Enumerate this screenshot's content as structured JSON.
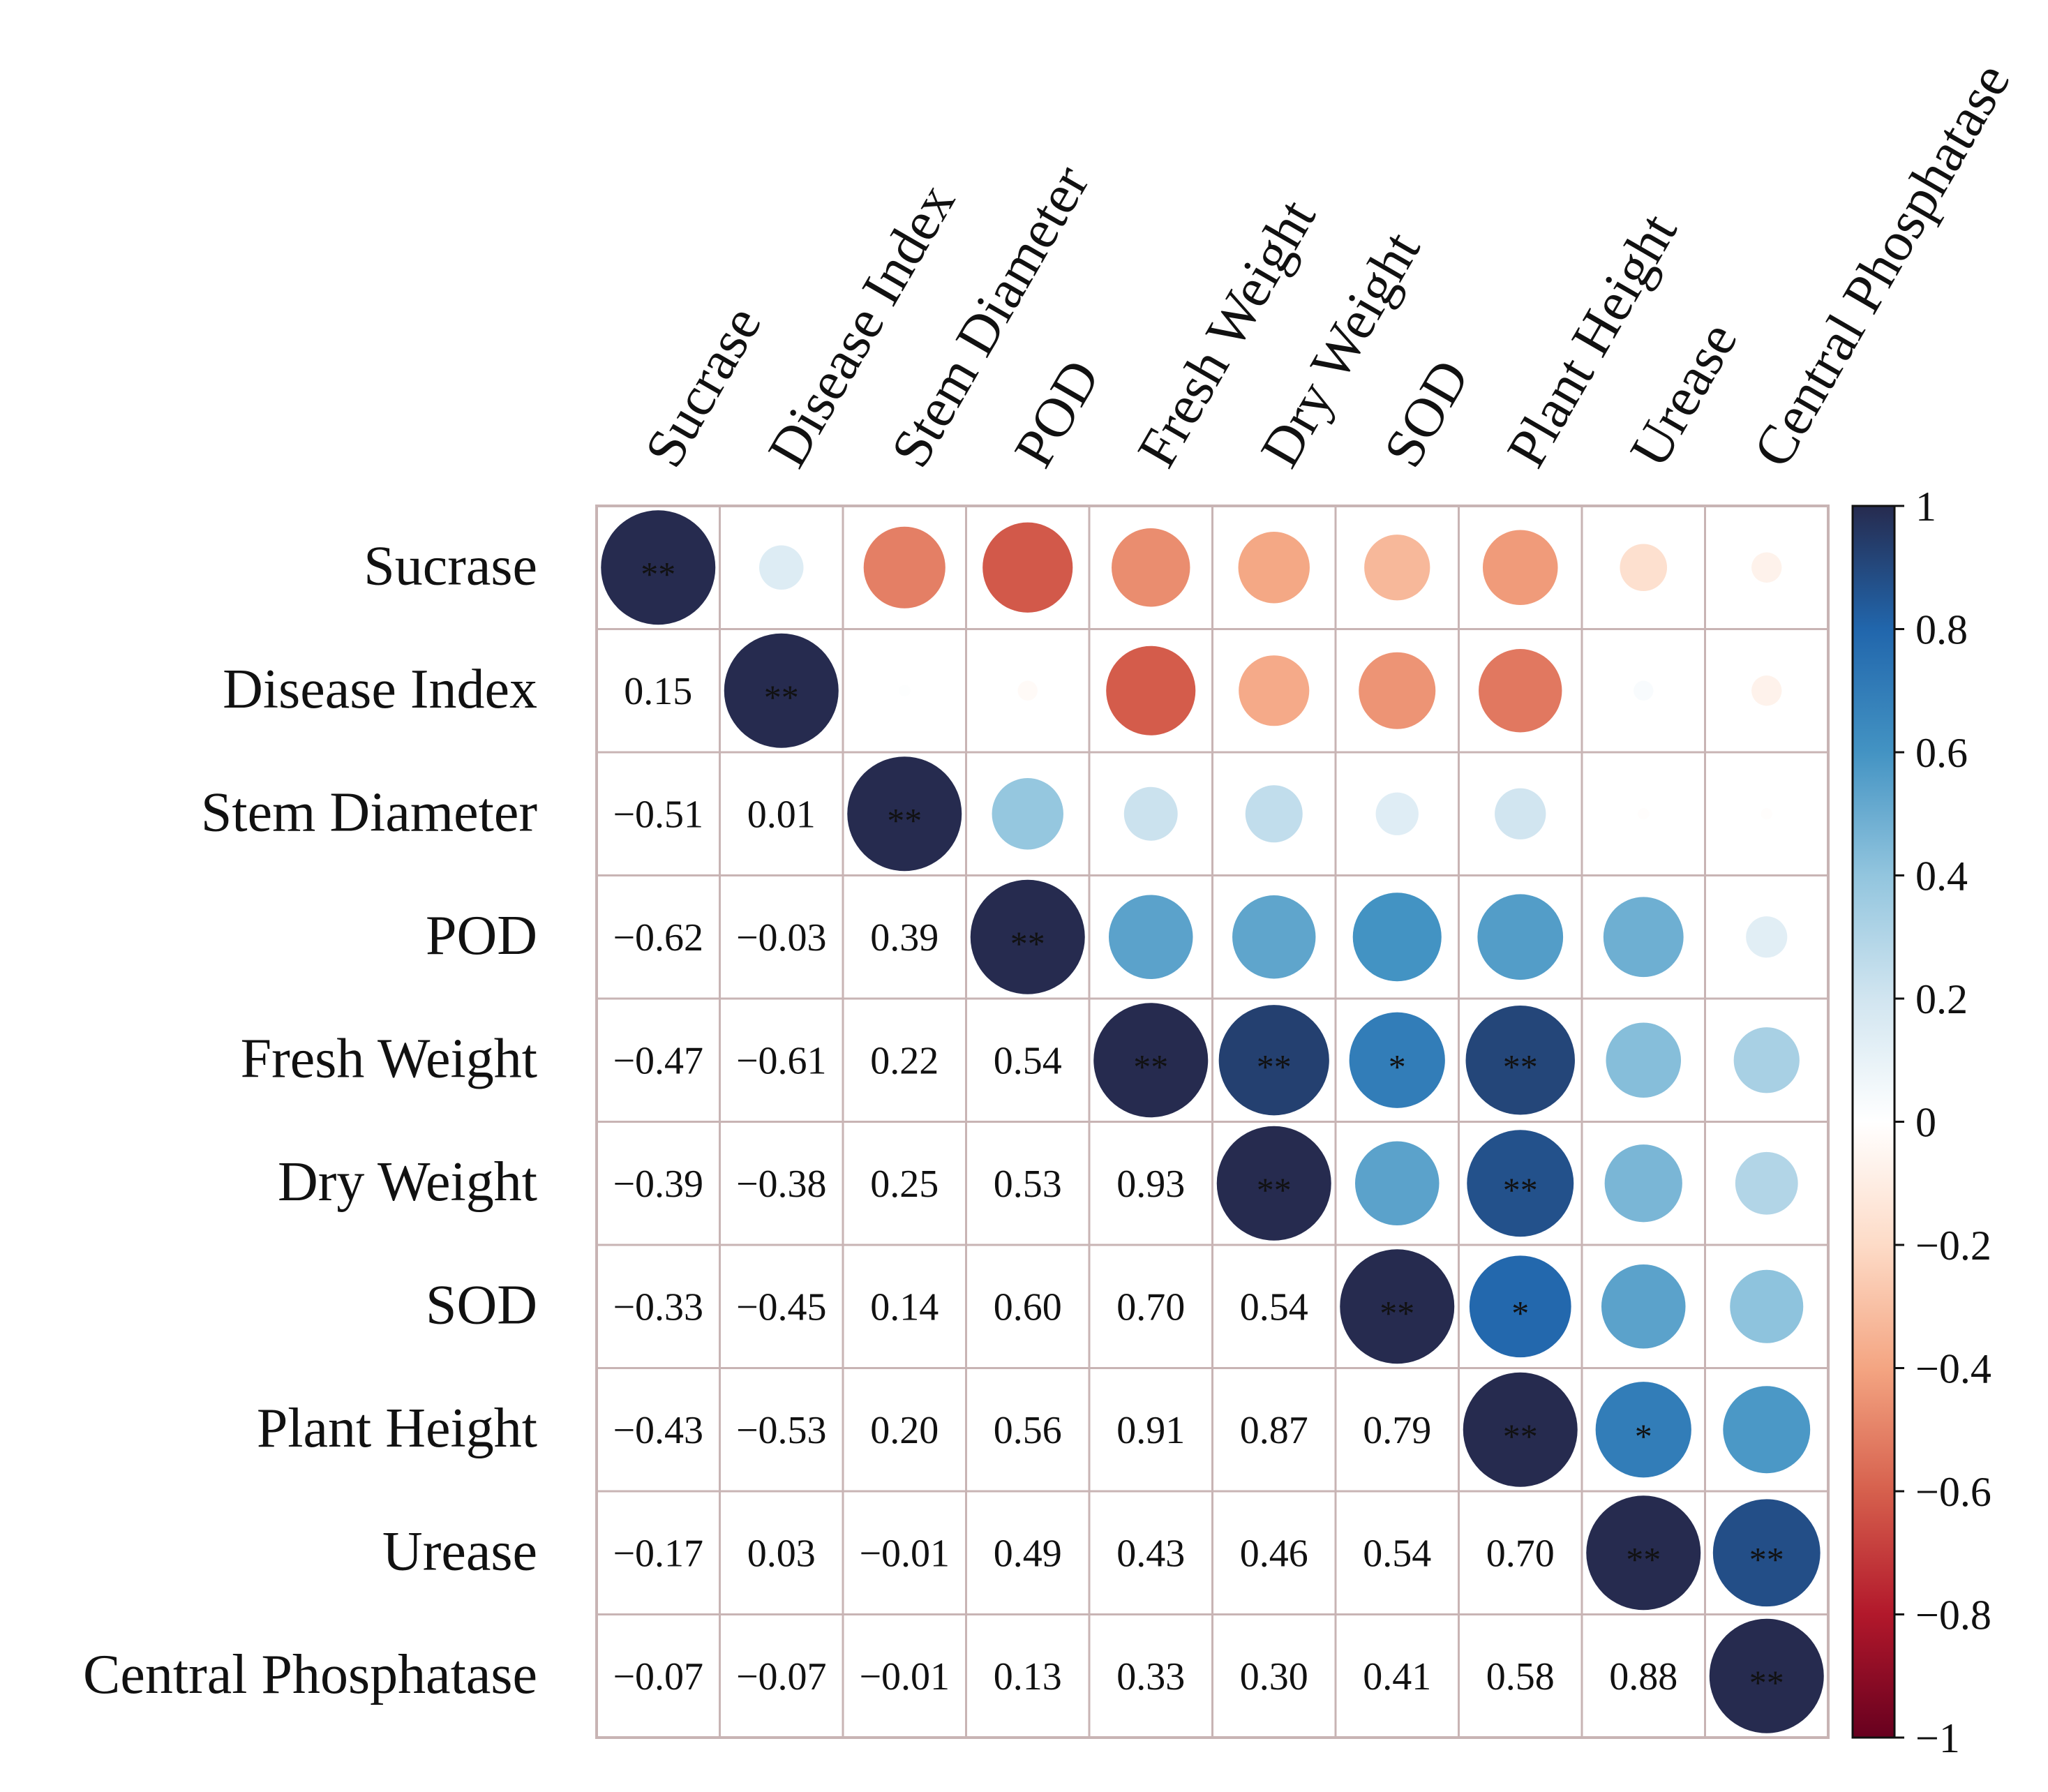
{
  "chart_data": {
    "type": "heatmap",
    "variables": [
      "Sucrase",
      "Disease Index",
      "Stem Diameter",
      "POD",
      "Fresh Weight",
      "Dry Weight",
      "SOD",
      "Plant Height",
      "Urease",
      "Central Phosphatase"
    ],
    "matrix": [
      [
        1,
        0.15,
        -0.51,
        -0.62,
        -0.47,
        -0.39,
        -0.33,
        -0.43,
        -0.17,
        -0.07
      ],
      [
        0.15,
        1,
        0.01,
        -0.03,
        -0.61,
        -0.38,
        -0.45,
        -0.53,
        0.03,
        -0.07
      ],
      [
        -0.51,
        0.01,
        1,
        0.39,
        0.22,
        0.25,
        0.14,
        0.2,
        -0.01,
        -0.01
      ],
      [
        -0.62,
        -0.03,
        0.39,
        1,
        0.54,
        0.53,
        0.6,
        0.56,
        0.49,
        0.13
      ],
      [
        -0.47,
        -0.61,
        0.22,
        0.54,
        1,
        0.93,
        0.7,
        0.91,
        0.43,
        0.33
      ],
      [
        -0.39,
        -0.38,
        0.25,
        0.53,
        0.93,
        1,
        0.54,
        0.87,
        0.46,
        0.3
      ],
      [
        -0.33,
        -0.45,
        0.14,
        0.6,
        0.7,
        0.54,
        1,
        0.79,
        0.54,
        0.41
      ],
      [
        -0.43,
        -0.53,
        0.2,
        0.56,
        0.91,
        0.87,
        0.79,
        1,
        0.7,
        0.58
      ],
      [
        -0.17,
        0.03,
        -0.01,
        0.49,
        0.43,
        0.46,
        0.54,
        0.7,
        1,
        0.88
      ],
      [
        -0.07,
        -0.07,
        -0.01,
        0.13,
        0.33,
        0.3,
        0.41,
        0.58,
        0.88,
        1
      ]
    ],
    "display": {
      "lower_triangle": "numbers",
      "upper_triangle_and_diagonal": "circles"
    },
    "significance_upper": [
      {
        "row": 0,
        "col": 0,
        "mark": "**"
      },
      {
        "row": 1,
        "col": 1,
        "mark": "**"
      },
      {
        "row": 2,
        "col": 2,
        "mark": "**"
      },
      {
        "row": 3,
        "col": 3,
        "mark": "**"
      },
      {
        "row": 4,
        "col": 4,
        "mark": "**"
      },
      {
        "row": 4,
        "col": 5,
        "mark": "**"
      },
      {
        "row": 4,
        "col": 6,
        "mark": "*"
      },
      {
        "row": 4,
        "col": 7,
        "mark": "**"
      },
      {
        "row": 5,
        "col": 5,
        "mark": "**"
      },
      {
        "row": 5,
        "col": 7,
        "mark": "**"
      },
      {
        "row": 6,
        "col": 6,
        "mark": "**"
      },
      {
        "row": 6,
        "col": 7,
        "mark": "*"
      },
      {
        "row": 7,
        "col": 7,
        "mark": "**"
      },
      {
        "row": 7,
        "col": 8,
        "mark": "*"
      },
      {
        "row": 8,
        "col": 8,
        "mark": "**"
      },
      {
        "row": 8,
        "col": 9,
        "mark": "**"
      },
      {
        "row": 9,
        "col": 9,
        "mark": "**"
      }
    ],
    "colorbar": {
      "min": -1,
      "max": 1,
      "ticks": [
        1,
        0.8,
        0.6,
        0.4,
        0.2,
        0,
        -0.2,
        -0.4,
        -0.6,
        -0.8,
        -1
      ],
      "tick_labels": [
        "1",
        "0.8",
        "0.6",
        "0.4",
        "0.2",
        "0",
        "−0.2",
        "−0.4",
        "−0.6",
        "−0.8",
        "−1"
      ],
      "stops": [
        {
          "value": -1,
          "color": "#67001f"
        },
        {
          "value": -0.8,
          "color": "#b2182b"
        },
        {
          "value": -0.6,
          "color": "#d6604d"
        },
        {
          "value": -0.4,
          "color": "#f4a582"
        },
        {
          "value": -0.2,
          "color": "#fddbc7"
        },
        {
          "value": 0,
          "color": "#ffffff"
        },
        {
          "value": 0.2,
          "color": "#d1e5f0"
        },
        {
          "value": 0.4,
          "color": "#92c5de"
        },
        {
          "value": 0.6,
          "color": "#4393c3"
        },
        {
          "value": 0.8,
          "color": "#2166ac"
        },
        {
          "value": 1,
          "color": "#262b4f"
        }
      ]
    },
    "grid_color": "#c8b4b4",
    "number_format": "2 decimals, unicode minus"
  }
}
